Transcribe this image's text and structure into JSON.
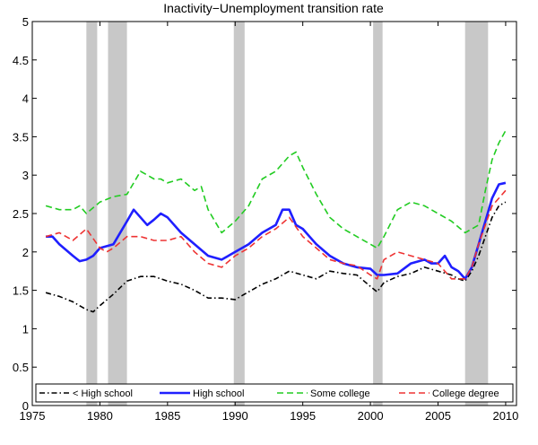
{
  "chart_data": {
    "type": "line",
    "title": "Inactivity−Unemployment transition rate",
    "xlabel": "",
    "ylabel": "",
    "xlim": [
      1975,
      2010.8
    ],
    "ylim": [
      0,
      5
    ],
    "xticks": [
      1975,
      1980,
      1985,
      1990,
      1995,
      2000,
      2005,
      2010
    ],
    "yticks": [
      0,
      0.5,
      1,
      1.5,
      2,
      2.5,
      3,
      3.5,
      4,
      4.5,
      5
    ],
    "ytick_labels": [
      "0",
      "0.5",
      "1",
      "1.5",
      "2",
      "2.5",
      "3",
      "3.5",
      "4",
      "4.5",
      "5"
    ],
    "grid": false,
    "legend_position": "bottom",
    "recessions": [
      [
        1979.0,
        1979.8
      ],
      [
        1980.6,
        1982.0
      ],
      [
        1989.9,
        1990.7
      ],
      [
        2000.2,
        2000.9
      ],
      [
        2007.0,
        2008.7
      ]
    ],
    "series": [
      {
        "name": "< High school",
        "color": "#000000",
        "dash": "dashdot",
        "x": [
          1976.0,
          1977.0,
          1978.0,
          1979.0,
          1979.5,
          1980.0,
          1981.0,
          1982.0,
          1983.0,
          1984.0,
          1985.0,
          1986.0,
          1987.0,
          1988.0,
          1989.0,
          1990.0,
          1991.0,
          1992.0,
          1993.0,
          1994.0,
          1995.0,
          1996.0,
          1997.0,
          1998.0,
          1999.0,
          2000.0,
          2000.5,
          2001.0,
          2002.0,
          2003.0,
          2004.0,
          2005.0,
          2006.0,
          2006.5,
          2007.0,
          2007.5,
          2008.0,
          2008.5,
          2009.0,
          2009.5,
          2010.0
        ],
        "y": [
          1.47,
          1.42,
          1.35,
          1.25,
          1.22,
          1.3,
          1.45,
          1.62,
          1.68,
          1.68,
          1.62,
          1.58,
          1.5,
          1.4,
          1.4,
          1.38,
          1.48,
          1.58,
          1.65,
          1.75,
          1.7,
          1.65,
          1.75,
          1.72,
          1.7,
          1.55,
          1.48,
          1.6,
          1.68,
          1.72,
          1.8,
          1.75,
          1.7,
          1.65,
          1.62,
          1.75,
          1.95,
          2.2,
          2.45,
          2.6,
          2.65
        ]
      },
      {
        "name": "High school",
        "color": "#1f1fff",
        "dash": "solid",
        "x": [
          1976.0,
          1976.5,
          1977.0,
          1978.0,
          1978.5,
          1979.0,
          1979.5,
          1980.0,
          1981.0,
          1982.0,
          1982.5,
          1983.0,
          1983.5,
          1984.0,
          1984.5,
          1985.0,
          1986.0,
          1987.0,
          1988.0,
          1989.0,
          1990.0,
          1991.0,
          1992.0,
          1993.0,
          1993.5,
          1994.0,
          1994.5,
          1995.0,
          1995.5,
          1996.0,
          1997.0,
          1998.0,
          1999.0,
          2000.0,
          2000.5,
          2001.0,
          2002.0,
          2003.0,
          2004.0,
          2004.5,
          2005.0,
          2005.5,
          2006.0,
          2006.5,
          2007.0,
          2007.5,
          2008.0,
          2008.5,
          2009.0,
          2009.5,
          2010.0
        ],
        "y": [
          2.2,
          2.2,
          2.1,
          1.95,
          1.88,
          1.9,
          1.95,
          2.05,
          2.1,
          2.4,
          2.55,
          2.45,
          2.35,
          2.42,
          2.5,
          2.45,
          2.25,
          2.1,
          1.95,
          1.9,
          2.0,
          2.1,
          2.25,
          2.35,
          2.55,
          2.55,
          2.35,
          2.3,
          2.2,
          2.1,
          1.95,
          1.85,
          1.8,
          1.78,
          1.7,
          1.7,
          1.72,
          1.85,
          1.9,
          1.85,
          1.85,
          1.95,
          1.8,
          1.75,
          1.65,
          1.8,
          2.1,
          2.4,
          2.7,
          2.88,
          2.9
        ]
      },
      {
        "name": "Some college",
        "color": "#22cc22",
        "dash": "dashed",
        "x": [
          1976.0,
          1977.0,
          1978.0,
          1978.5,
          1979.0,
          1980.0,
          1981.0,
          1982.0,
          1983.0,
          1984.0,
          1984.5,
          1985.0,
          1986.0,
          1987.0,
          1987.5,
          1988.0,
          1989.0,
          1990.0,
          1991.0,
          1992.0,
          1993.0,
          1994.0,
          1994.5,
          1995.0,
          1996.0,
          1997.0,
          1998.0,
          1999.0,
          2000.0,
          2000.5,
          2001.0,
          2002.0,
          2003.0,
          2004.0,
          2005.0,
          2006.0,
          2007.0,
          2008.0,
          2008.5,
          2009.0,
          2009.5,
          2010.0
        ],
        "y": [
          2.6,
          2.55,
          2.55,
          2.6,
          2.5,
          2.65,
          2.72,
          2.75,
          3.05,
          2.95,
          2.95,
          2.9,
          2.95,
          2.8,
          2.85,
          2.55,
          2.25,
          2.4,
          2.6,
          2.95,
          3.05,
          3.25,
          3.3,
          3.1,
          2.75,
          2.45,
          2.3,
          2.2,
          2.1,
          2.05,
          2.2,
          2.55,
          2.65,
          2.6,
          2.5,
          2.4,
          2.25,
          2.35,
          2.8,
          3.2,
          3.42,
          3.58
        ]
      },
      {
        "name": "College degree",
        "color": "#ee3333",
        "dash": "dashed",
        "x": [
          1976.0,
          1977.0,
          1978.0,
          1979.0,
          1980.0,
          1980.5,
          1981.0,
          1982.0,
          1983.0,
          1984.0,
          1985.0,
          1986.0,
          1987.0,
          1988.0,
          1989.0,
          1990.0,
          1991.0,
          1992.0,
          1993.0,
          1994.0,
          1995.0,
          1996.0,
          1997.0,
          1998.0,
          1999.0,
          2000.0,
          2000.5,
          2001.0,
          2002.0,
          2003.0,
          2004.0,
          2005.0,
          2006.0,
          2007.0,
          2007.5,
          2008.0,
          2008.5,
          2009.0,
          2009.5,
          2010.0
        ],
        "y": [
          2.2,
          2.25,
          2.15,
          2.3,
          2.05,
          2.0,
          2.05,
          2.2,
          2.2,
          2.15,
          2.15,
          2.2,
          2.0,
          1.85,
          1.8,
          1.95,
          2.05,
          2.2,
          2.3,
          2.45,
          2.2,
          2.05,
          1.9,
          1.85,
          1.82,
          1.7,
          1.65,
          1.9,
          2.0,
          1.95,
          1.9,
          1.85,
          1.65,
          1.65,
          1.8,
          2.1,
          2.35,
          2.6,
          2.7,
          2.8
        ]
      }
    ]
  }
}
